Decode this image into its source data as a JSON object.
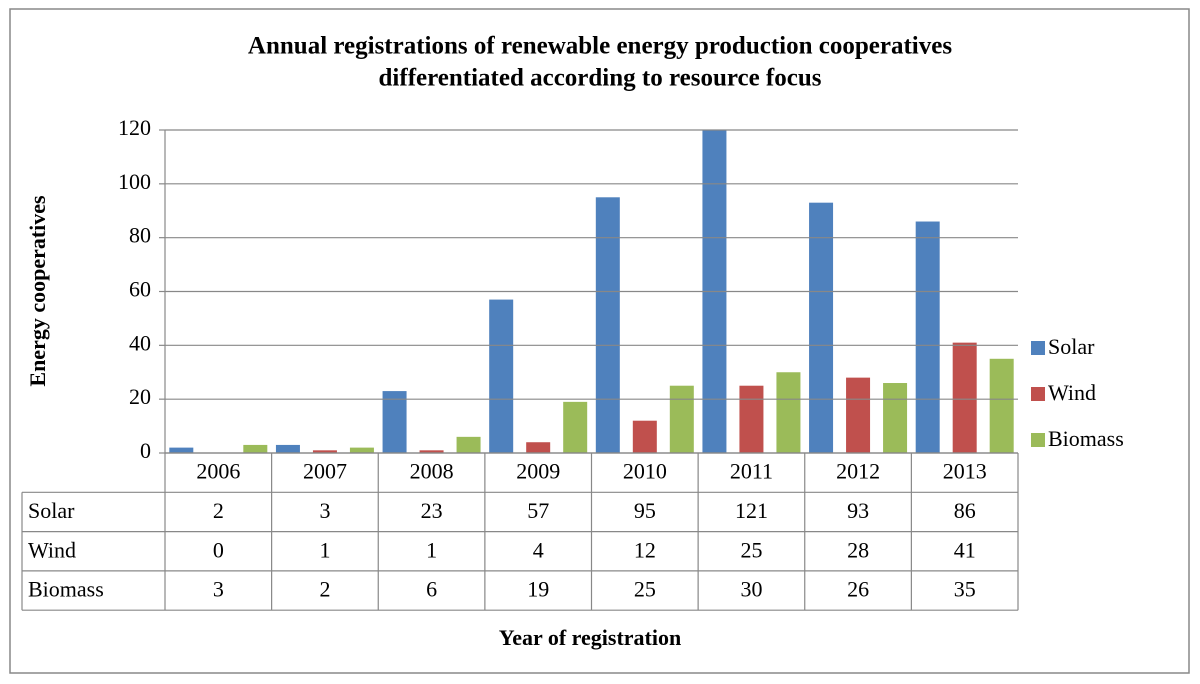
{
  "chart_data": {
    "type": "bar",
    "title": [
      "Annual registrations of renewable energy production cooperatives",
      "differentiated according to resource focus"
    ],
    "y_label": "Energy cooperatives",
    "x_label": "Year of registration",
    "categories": [
      "2006",
      "2007",
      "2008",
      "2009",
      "2010",
      "2011",
      "2012",
      "2013"
    ],
    "series": [
      {
        "name": "Solar",
        "color": "#4f81bd",
        "values": [
          2,
          3,
          23,
          57,
          95,
          121,
          93,
          86
        ]
      },
      {
        "name": "Wind",
        "color": "#c0504d",
        "values": [
          0,
          1,
          1,
          4,
          12,
          25,
          28,
          41
        ]
      },
      {
        "name": "Biomass",
        "color": "#9bbb59",
        "values": [
          3,
          2,
          6,
          19,
          25,
          30,
          26,
          35
        ]
      }
    ],
    "ylim": [
      0,
      120
    ],
    "yticks": [
      0,
      20,
      40,
      60,
      80,
      100,
      120
    ],
    "grid": true,
    "legend": "right",
    "data_table": true
  }
}
